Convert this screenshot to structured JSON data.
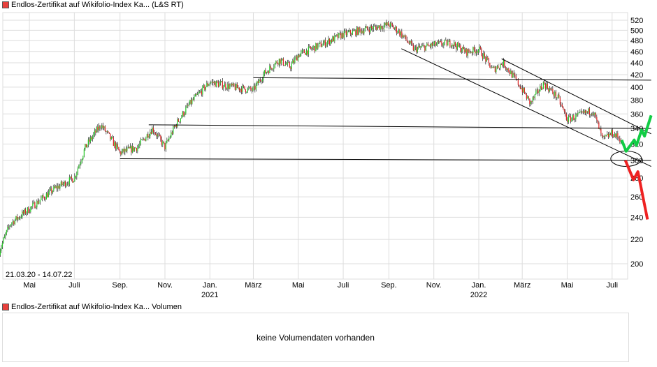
{
  "chart_data": {
    "type": "candlestick",
    "title": "Endlos-Zertifikat auf Wikifolio-Index Ka... (L&S RT)",
    "date_range_label": "21.03.20 - 14.07.22",
    "y_scale": "log",
    "ylim": [
      195,
      530
    ],
    "yticks": [
      200,
      220,
      240,
      260,
      280,
      300,
      320,
      340,
      360,
      380,
      400,
      420,
      440,
      460,
      480,
      500,
      520
    ],
    "xticks": [
      {
        "date": "2020-05-01",
        "label": "Mai"
      },
      {
        "date": "2020-07-01",
        "label": "Juli"
      },
      {
        "date": "2020-09-01",
        "label": "Sep."
      },
      {
        "date": "2020-11-01",
        "label": "Nov."
      },
      {
        "date": "2021-01-01",
        "label": "Jan.",
        "year": "2021"
      },
      {
        "date": "2021-03-01",
        "label": "März"
      },
      {
        "date": "2021-05-01",
        "label": "Mai"
      },
      {
        "date": "2021-07-01",
        "label": "Juli"
      },
      {
        "date": "2021-09-01",
        "label": "Sep."
      },
      {
        "date": "2021-11-01",
        "label": "Nov."
      },
      {
        "date": "2022-01-01",
        "label": "Jan.",
        "year": "2022"
      },
      {
        "date": "2022-03-01",
        "label": "März"
      },
      {
        "date": "2022-05-01",
        "label": "Mai"
      },
      {
        "date": "2022-07-01",
        "label": "Juli"
      }
    ],
    "grid": true,
    "colors": {
      "up": "#22cc22",
      "down": "#e02020",
      "grid": "#dddddd",
      "projection_up": "#11cc44",
      "projection_down": "#ee2222"
    },
    "price_path": [
      [
        "2020-03-21",
        210
      ],
      [
        "2020-04-05",
        234
      ],
      [
        "2020-05-01",
        248
      ],
      [
        "2020-06-05",
        269
      ],
      [
        "2020-07-01",
        280
      ],
      [
        "2020-07-16",
        316
      ],
      [
        "2020-08-06",
        345
      ],
      [
        "2020-09-01",
        309
      ],
      [
        "2020-09-25",
        316
      ],
      [
        "2020-10-15",
        340
      ],
      [
        "2020-11-01",
        316
      ],
      [
        "2020-11-15",
        344
      ],
      [
        "2020-12-05",
        375
      ],
      [
        "2021-01-01",
        408
      ],
      [
        "2021-02-01",
        400
      ],
      [
        "2021-03-01",
        395
      ],
      [
        "2021-03-15",
        421
      ],
      [
        "2021-04-05",
        445
      ],
      [
        "2021-04-20",
        433
      ],
      [
        "2021-05-01",
        454
      ],
      [
        "2021-06-05",
        475
      ],
      [
        "2021-07-01",
        492
      ],
      [
        "2021-08-01",
        502
      ],
      [
        "2021-09-01",
        511
      ],
      [
        "2021-09-15",
        497
      ],
      [
        "2021-10-05",
        464
      ],
      [
        "2021-11-01",
        472
      ],
      [
        "2021-11-25",
        476
      ],
      [
        "2021-12-15",
        459
      ],
      [
        "2022-01-01",
        464
      ],
      [
        "2022-01-20",
        428
      ],
      [
        "2022-02-03",
        440
      ],
      [
        "2022-02-27",
        400
      ],
      [
        "2022-03-12",
        375
      ],
      [
        "2022-03-30",
        406
      ],
      [
        "2022-04-18",
        384
      ],
      [
        "2022-05-01",
        352
      ],
      [
        "2022-05-20",
        359
      ],
      [
        "2022-06-05",
        365
      ],
      [
        "2022-06-18",
        325
      ],
      [
        "2022-07-01",
        334
      ],
      [
        "2022-07-14",
        325
      ]
    ],
    "annotations": {
      "horizontal_lines": [
        {
          "from": [
            "2021-03-01",
            415
          ],
          "to": [
            "2022-08-23",
            411
          ]
        },
        {
          "from": [
            "2020-10-10",
            345
          ],
          "to": [
            "2022-08-23",
            340
          ]
        },
        {
          "from": [
            "2020-09-01",
            302
          ],
          "to": [
            "2022-08-23",
            300
          ]
        }
      ],
      "channel_lines": [
        {
          "from": [
            "2022-02-01",
            447
          ],
          "to": [
            "2022-08-23",
            333
          ]
        },
        {
          "from": [
            "2021-09-18",
            465
          ],
          "to": [
            "2022-08-23",
            293
          ]
        }
      ],
      "ellipse_center": [
        "2022-07-20",
        302
      ],
      "projection_up": [
        [
          "2022-07-14",
          325
        ],
        [
          "2022-07-20",
          311
        ],
        [
          "2022-07-31",
          325
        ],
        [
          "2022-08-03",
          318
        ],
        [
          "2022-08-10",
          338
        ],
        [
          "2022-08-14",
          330
        ],
        [
          "2022-08-23",
          358
        ]
      ],
      "projection_down": [
        [
          "2022-07-19",
          300
        ],
        [
          "2022-07-30",
          278
        ],
        [
          "2022-08-05",
          287
        ],
        [
          "2022-08-18",
          238
        ]
      ]
    }
  },
  "volume_panel": {
    "legend": "Endlos-Zertifikat auf Wikifolio-Index Ka... Volumen",
    "message": "keine Volumendaten vorhanden"
  }
}
